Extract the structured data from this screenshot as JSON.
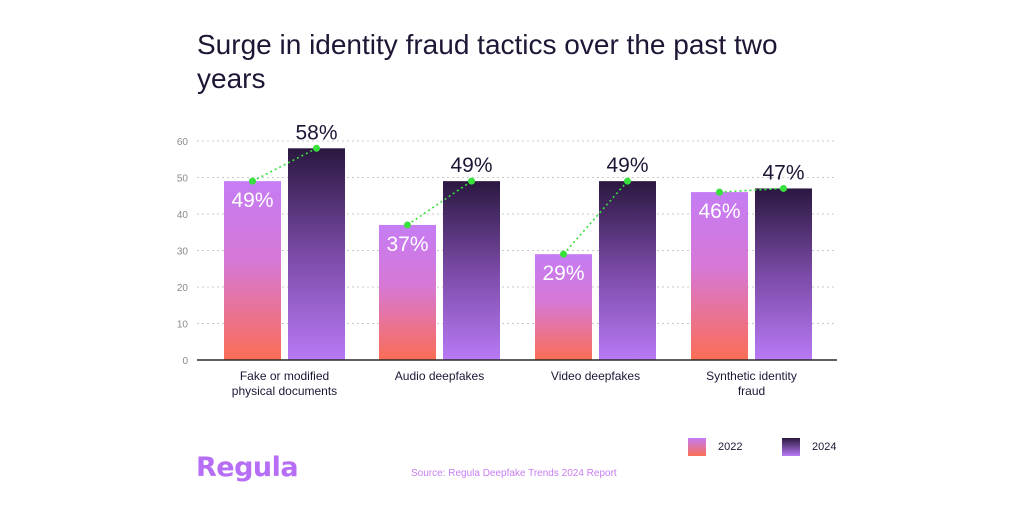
{
  "chart_data": {
    "type": "bar",
    "title": "Surge in identity fraud tactics over the past two years",
    "categories": [
      [
        "Fake or modified",
        "physical documents"
      ],
      [
        "Audio deepfakes"
      ],
      [
        "Video deepfakes"
      ],
      [
        "Synthetic identity",
        "fraud"
      ]
    ],
    "series": [
      {
        "name": "2022",
        "values": [
          49,
          37,
          29,
          46
        ],
        "labels": [
          "49%",
          "37%",
          "29%",
          "46%"
        ]
      },
      {
        "name": "2024",
        "values": [
          58,
          49,
          49,
          47
        ],
        "labels": [
          "58%",
          "49%",
          "49%",
          "47%"
        ]
      }
    ],
    "ylim": [
      0,
      60
    ],
    "yticks": [
      0,
      10,
      20,
      30,
      40,
      50,
      60
    ],
    "grid": true,
    "legend_position": "bottom-right",
    "trend_connector": "dotted green line linking 2022 and 2024 values per category",
    "colors": {
      "series_2022_top": "#c57cf4",
      "series_2022_bottom": "#fb6e55",
      "series_2024_top": "#2a1840",
      "series_2024_bottom": "#b87af5",
      "trend": "#38e03c"
    }
  },
  "legend": [
    {
      "label": "2022"
    },
    {
      "label": "2024"
    }
  ],
  "brand": {
    "name": "Regula"
  },
  "source": "Source: Regula Deepfake Trends 2024 Report"
}
